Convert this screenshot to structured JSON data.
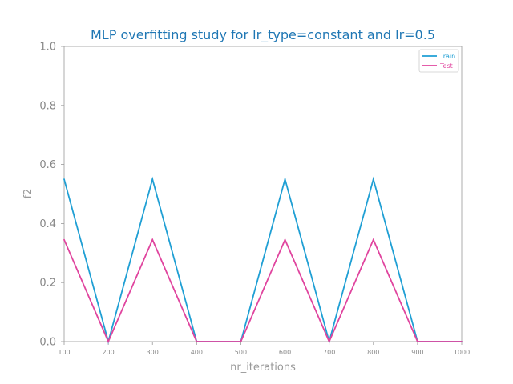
{
  "chart_data": {
    "type": "line",
    "title": "MLP overfitting study for lr_type=constant and lr=0.5",
    "xlabel": "nr_iterations",
    "ylabel": "f2",
    "x": [
      100,
      200,
      300,
      400,
      500,
      600,
      700,
      800,
      900,
      1000
    ],
    "xticks": [
      "100",
      "200",
      "300",
      "400",
      "500",
      "600",
      "700",
      "800",
      "900",
      "1000"
    ],
    "yticks": [
      "0.0",
      "0.2",
      "0.4",
      "0.6",
      "0.8",
      "1.0"
    ],
    "xlim": [
      100,
      1000
    ],
    "ylim": [
      0,
      1
    ],
    "grid": false,
    "legend_position": "top-right",
    "series": [
      {
        "name": "Train",
        "color": "#1f9fd4",
        "values": [
          0.55,
          0.0,
          0.55,
          0.0,
          0.0,
          0.55,
          0.0,
          0.55,
          0.0,
          0.0
        ]
      },
      {
        "name": "Test",
        "color": "#e0449e",
        "values": [
          0.345,
          0.0,
          0.345,
          0.0,
          0.0,
          0.345,
          0.0,
          0.345,
          0.0,
          0.0
        ]
      }
    ]
  }
}
